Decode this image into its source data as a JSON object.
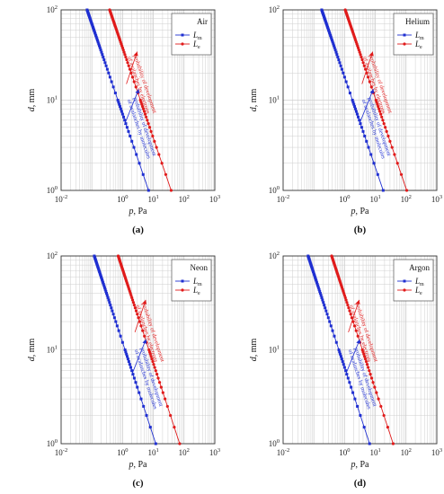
{
  "figure": {
    "panel_labels": [
      "(a)",
      "(b)",
      "(c)",
      "(d)"
    ],
    "colors": {
      "Lm": "#1f2fd1",
      "Le": "#e01b1b",
      "grid": "#cfcfcf",
      "frame": "#333333"
    }
  },
  "chart_data": [
    {
      "type": "scatter",
      "panel": "(a)",
      "gas": "Air",
      "xlabel": "p, Pa",
      "ylabel": "d, mm",
      "xscale": "log",
      "yscale": "log",
      "xlim": [
        0.01,
        1000
      ],
      "ylim": [
        1,
        100
      ],
      "x_ticks": [
        "10-2",
        "100",
        "101",
        "102",
        "103"
      ],
      "y_ticks": [
        "100",
        "101",
        "102"
      ],
      "grid": true,
      "legend": "top-right",
      "series": [
        {
          "name": "Lm",
          "label_main": "L",
          "label_sub": "m",
          "x_at_d100": 0.07,
          "x_at_d1": 7.0
        },
        {
          "name": "Le",
          "label_main": "L",
          "label_sub": "e",
          "x_at_d100": 0.38,
          "x_at_d1": 38.0
        }
      ],
      "annotations": {
        "blue": [
          "probability of development",
          "of avalanches by molecules"
        ],
        "red": [
          "probability of development",
          "of avalanches by electrons"
        ]
      }
    },
    {
      "type": "scatter",
      "panel": "(b)",
      "gas": "Helium",
      "xlabel": "p, Pa",
      "ylabel": "d, mm",
      "xscale": "log",
      "yscale": "log",
      "xlim": [
        0.01,
        1000
      ],
      "ylim": [
        1,
        100
      ],
      "x_ticks": [
        "10-2",
        "100",
        "101",
        "102",
        "103"
      ],
      "y_ticks": [
        "100",
        "101",
        "102"
      ],
      "grid": true,
      "legend": "top-right",
      "series": [
        {
          "name": "Lm",
          "label_main": "L",
          "label_sub": "m",
          "x_at_d100": 0.18,
          "x_at_d1": 18.0
        },
        {
          "name": "Le",
          "label_main": "L",
          "label_sub": "e",
          "x_at_d100": 1.05,
          "x_at_d1": 105.0
        }
      ],
      "annotations": {
        "blue": [
          "probability of development",
          "of avalanches by molecules"
        ],
        "red": [
          "probability of development",
          "of avalanches by electrons"
        ]
      }
    },
    {
      "type": "scatter",
      "panel": "(c)",
      "gas": "Neon",
      "xlabel": "p, Pa",
      "ylabel": "d, mm",
      "xscale": "log",
      "yscale": "log",
      "xlim": [
        0.01,
        1000
      ],
      "ylim": [
        1,
        100
      ],
      "x_ticks": [
        "10-2",
        "100",
        "101",
        "102",
        "103"
      ],
      "y_ticks": [
        "100",
        "101",
        "102"
      ],
      "grid": true,
      "legend": "top-right",
      "series": [
        {
          "name": "Lm",
          "label_main": "L",
          "label_sub": "m",
          "x_at_d100": 0.12,
          "x_at_d1": 12.0
        },
        {
          "name": "Le",
          "label_main": "L",
          "label_sub": "e",
          "x_at_d100": 0.72,
          "x_at_d1": 72.0
        }
      ],
      "annotations": {
        "blue": [
          "probability of development",
          "of avalanches by molecules"
        ],
        "red": [
          "probability of development",
          "of avalanches by electrons"
        ]
      }
    },
    {
      "type": "scatter",
      "panel": "(d)",
      "gas": "Argon",
      "xlabel": "p, Pa",
      "ylabel": "d, mm",
      "xscale": "log",
      "yscale": "log",
      "xlim": [
        0.01,
        1000
      ],
      "ylim": [
        1,
        100
      ],
      "x_ticks": [
        "10-2",
        "100",
        "101",
        "102",
        "103"
      ],
      "y_ticks": [
        "100",
        "101",
        "102"
      ],
      "grid": true,
      "legend": "top-right",
      "series": [
        {
          "name": "Lm",
          "label_main": "L",
          "label_sub": "m",
          "x_at_d100": 0.065,
          "x_at_d1": 6.5
        },
        {
          "name": "Le",
          "label_main": "L",
          "label_sub": "e",
          "x_at_d100": 0.38,
          "x_at_d1": 38.0
        }
      ],
      "annotations": {
        "blue": [
          "probability of development",
          "of avalanches by molecules"
        ],
        "red": [
          "probability of development",
          "of avalanches by electrons"
        ]
      }
    }
  ]
}
